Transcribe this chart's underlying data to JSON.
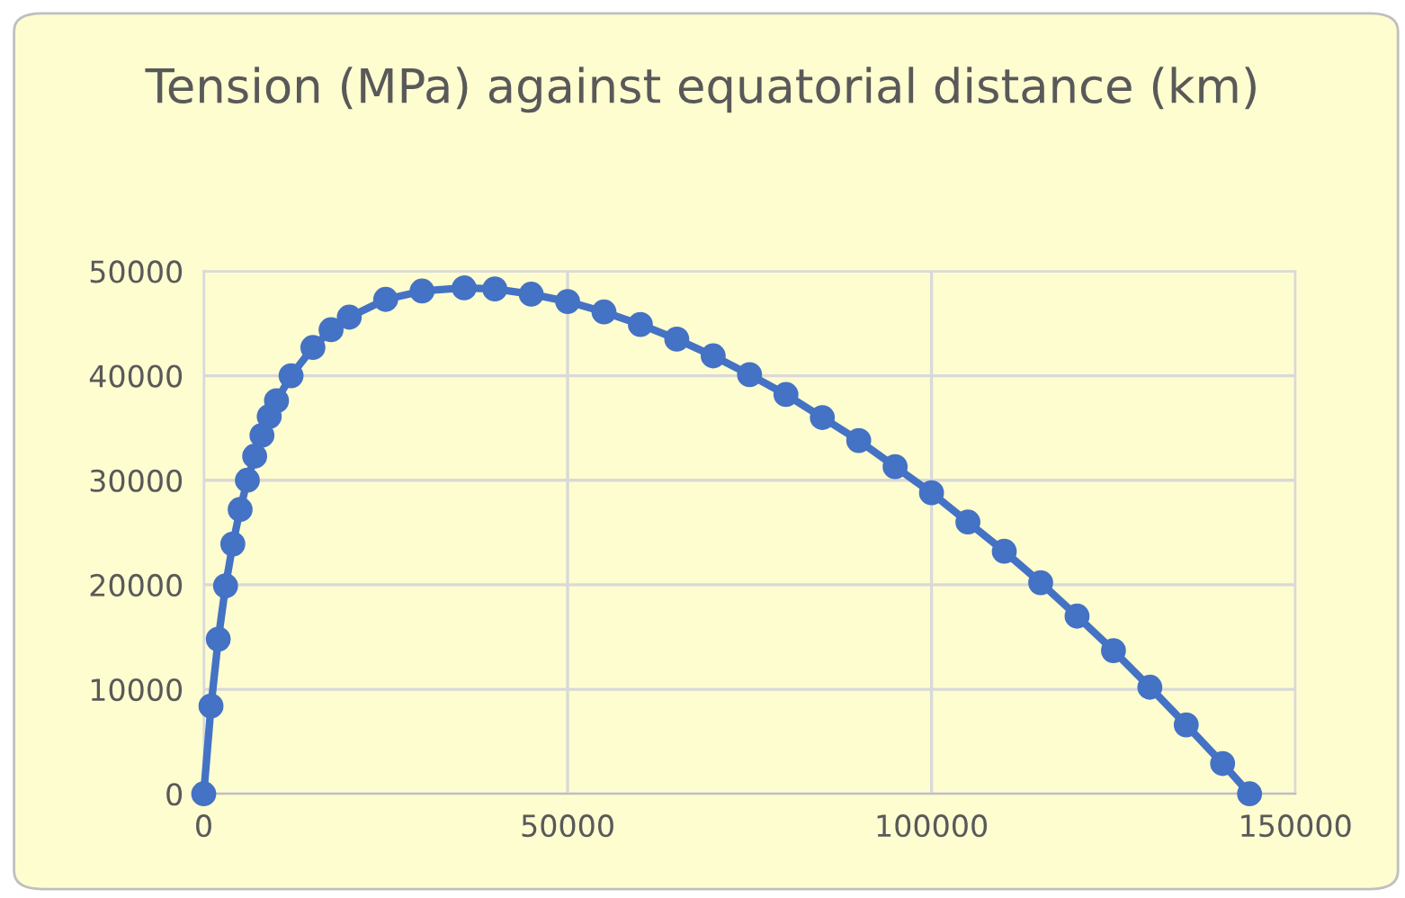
{
  "chart_data": {
    "type": "line",
    "title": "Tension (MPa) against equatorial distance (km)",
    "x": [
      0,
      1000,
      2000,
      3000,
      4000,
      5000,
      6000,
      7000,
      8000,
      9000,
      10000,
      12000,
      15000,
      17500,
      20000,
      25000,
      30000,
      35786,
      40000,
      45000,
      50000,
      55000,
      60000,
      65000,
      70000,
      75000,
      80000,
      85000,
      90000,
      95000,
      100000,
      105000,
      110000,
      115000,
      120000,
      125000,
      130000,
      135000,
      140000,
      143700
    ],
    "series": [
      {
        "color": "#4472c4",
        "values": [
          0,
          8400,
          14800,
          19900,
          23900,
          27200,
          30000,
          32300,
          34300,
          36100,
          37600,
          40000,
          42700,
          44400,
          45600,
          47300,
          48100,
          48400,
          48300,
          47800,
          47100,
          46100,
          44900,
          43500,
          41900,
          40100,
          38200,
          36000,
          33800,
          31300,
          28800,
          26000,
          23200,
          20200,
          17000,
          13700,
          10200,
          6600,
          2900,
          0
        ]
      }
    ],
    "xlim": [
      0,
      150000
    ],
    "ylim": [
      0,
      50000
    ],
    "xticks": [
      0,
      50000,
      100000,
      150000
    ],
    "yticks": [
      0,
      10000,
      20000,
      30000,
      40000,
      50000
    ],
    "grid": true,
    "marker": "circle",
    "line_style": "solid"
  }
}
